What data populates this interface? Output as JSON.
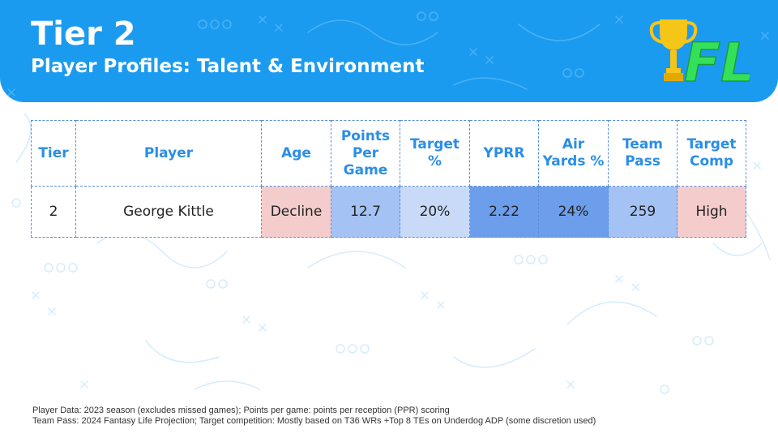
{
  "header": {
    "title": "Tier 2",
    "subtitle": "Player Profiles: Talent & Environment",
    "logo_text": "FL"
  },
  "colors": {
    "header_bg": "#1b9bf0",
    "heading_text": "#2a8ee6",
    "cell_red": "#f4cccc",
    "cell_blue_light": "#c9daf8",
    "cell_blue_mid": "#a4c2f4",
    "cell_blue_dark": "#6d9eeb",
    "logo_green": "#34e05a",
    "logo_gold": "#f5c518"
  },
  "table": {
    "headers": [
      "Tier",
      "Player",
      "Age",
      "Points Per Game",
      "Target %",
      "YPRR",
      "Air Yards %",
      "Team Pass",
      "Target Comp"
    ],
    "rows": [
      [
        "2",
        "George Kittle",
        "Decline",
        "12.7",
        "20%",
        "2.22",
        "24%",
        "259",
        "High"
      ]
    ]
  },
  "footer": {
    "line1": "Player Data: 2023 season (excludes missed games); Points per game: points per reception (PPR) scoring",
    "line2": "Team Pass: 2024 Fantasy Life Projection; Target competition: Mostly based on T36 WRs +Top 8 TEs on Underdog ADP (some discretion used)"
  }
}
